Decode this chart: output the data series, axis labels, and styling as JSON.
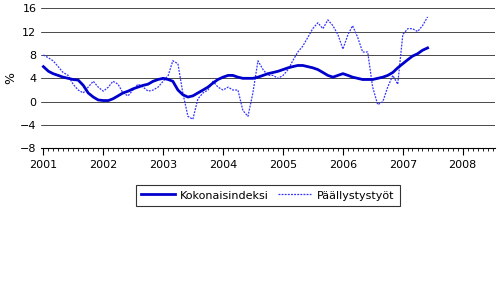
{
  "title": "",
  "ylabel": "%",
  "ylim": [
    -8,
    16
  ],
  "yticks": [
    -8,
    -4,
    0,
    4,
    8,
    12,
    16
  ],
  "color_kokonais": "#0000CC",
  "color_paallys": "#3333FF",
  "lw_kokonais": 2.0,
  "lw_paallys": 0.9,
  "legend_labels": [
    "Kokonaisindeksi",
    "Päällystystyöt"
  ],
  "kokonaisindeksi": [
    6.0,
    5.2,
    4.8,
    4.5,
    4.2,
    4.0,
    3.8,
    3.7,
    2.8,
    1.5,
    0.8,
    0.3,
    0.2,
    0.2,
    0.5,
    1.0,
    1.5,
    1.8,
    2.2,
    2.5,
    2.8,
    3.0,
    3.5,
    3.8,
    4.0,
    3.8,
    3.5,
    2.0,
    1.2,
    0.8,
    1.0,
    1.5,
    2.0,
    2.5,
    3.2,
    3.8,
    4.2,
    4.5,
    4.5,
    4.2,
    4.0,
    4.0,
    4.0,
    4.2,
    4.5,
    4.8,
    5.0,
    5.2,
    5.5,
    5.8,
    6.0,
    6.2,
    6.2,
    6.0,
    5.8,
    5.5,
    5.0,
    4.5,
    4.2,
    4.5,
    4.8,
    4.5,
    4.2,
    4.0,
    3.8,
    3.8,
    3.8,
    4.0,
    4.2,
    4.5,
    5.0,
    5.8,
    6.5,
    7.2,
    7.8,
    8.2,
    8.8,
    9.2
  ],
  "paallystystyo": [
    8.0,
    7.5,
    7.0,
    6.0,
    5.0,
    4.5,
    3.0,
    2.0,
    1.5,
    2.5,
    3.5,
    2.5,
    1.8,
    2.5,
    3.5,
    3.0,
    1.5,
    1.0,
    2.0,
    3.0,
    2.5,
    1.8,
    2.0,
    2.5,
    3.5,
    4.5,
    7.0,
    6.5,
    1.5,
    -2.5,
    -3.0,
    0.5,
    1.5,
    2.0,
    3.5,
    2.5,
    2.0,
    2.5,
    2.0,
    2.0,
    -1.5,
    -2.5,
    1.5,
    7.0,
    5.5,
    4.5,
    4.5,
    4.0,
    4.5,
    5.5,
    7.0,
    8.5,
    9.5,
    11.0,
    12.5,
    13.5,
    12.5,
    14.0,
    13.0,
    11.5,
    9.0,
    11.5,
    13.0,
    11.0,
    8.5,
    8.5,
    2.5,
    -0.5,
    0.0,
    2.5,
    4.5,
    3.0,
    11.5,
    12.5,
    12.5,
    12.0,
    13.0,
    14.5
  ]
}
